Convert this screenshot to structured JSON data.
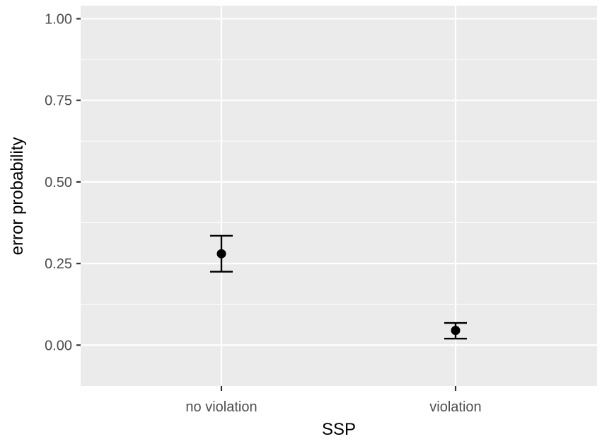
{
  "chart_data": {
    "type": "scatter",
    "title": "",
    "xlabel": "SSP",
    "ylabel": "error probability",
    "categories": [
      "no violation",
      "violation"
    ],
    "points": [
      {
        "x": "no violation",
        "y": 0.28,
        "ymin": 0.225,
        "ymax": 0.335
      },
      {
        "x": "violation",
        "y": 0.045,
        "ymin": 0.02,
        "ymax": 0.068
      }
    ],
    "ylim": [
      -0.125,
      1.04
    ],
    "yticks": [
      0.0,
      0.25,
      0.5,
      0.75,
      1.0
    ],
    "ytick_labels": [
      "0.00",
      "0.25",
      "0.50",
      "0.75",
      "1.00"
    ],
    "grid": true,
    "legend": "none",
    "colors": {
      "panel_background": "#ebebeb",
      "grid_line": "#ffffff",
      "point": "#000000",
      "tick_label": "#4d4d4d"
    }
  }
}
